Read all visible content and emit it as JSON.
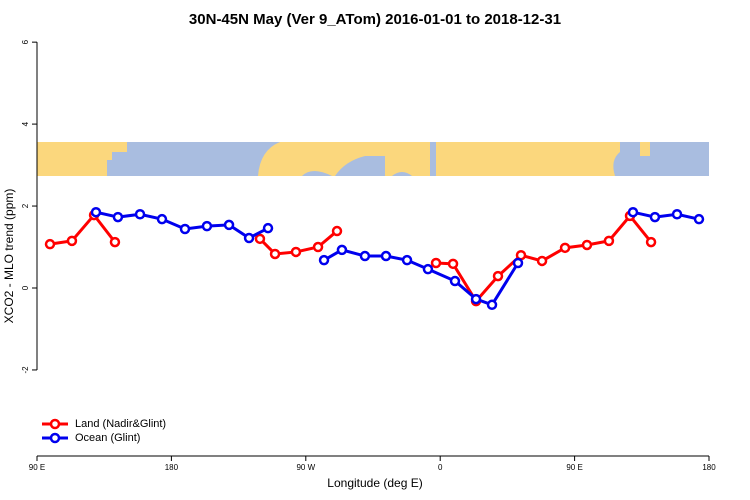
{
  "chart_data": {
    "type": "line",
    "title": "30N-45N May (Ver 9_ATom)   2016-01-01 to 2018-12-31",
    "x_label": "Longitude (deg E)",
    "y_label": "XCO2 - MLO trend (ppm)",
    "xlim": [
      90,
      540
    ],
    "ylim": [
      -4.1,
      6.15
    ],
    "xticks": [
      {
        "value": 90,
        "label": "90 E"
      },
      180,
      {
        "value": 270,
        "label": "90 W"
      },
      {
        "value": 360,
        "label": "0"
      },
      {
        "value": 450,
        "label": "90 E"
      },
      {
        "value": 540,
        "label": "180"
      }
    ],
    "yticks": [
      -2,
      0,
      2,
      4,
      6
    ],
    "legend": "bottom-left",
    "series": [
      {
        "name": "Land (Nadir&Glint)",
        "color": "#ff0000",
        "x": [
          98.7,
          113.4,
          128.2,
          142.2,
          null,
          239.3,
          249.4,
          263.4,
          278.2,
          290.9,
          null,
          357.2,
          368.6,
          384.0,
          398.7,
          414.1,
          428.2,
          443.6,
          458.3,
          473.0,
          487.1,
          501.2
        ],
        "values": [
          1.07,
          1.15,
          1.78,
          1.12,
          null,
          1.2,
          0.83,
          0.88,
          1.0,
          1.39,
          null,
          0.61,
          0.59,
          -0.32,
          0.29,
          0.8,
          0.66,
          0.98,
          1.05,
          1.15,
          1.76,
          1.12
        ]
      },
      {
        "name": "Ocean (Glint)",
        "color": "#0000ee",
        "x": [
          129.5,
          144.2,
          159.0,
          173.7,
          189.1,
          203.8,
          218.6,
          232.0,
          244.7,
          null,
          282.2,
          294.2,
          309.6,
          323.7,
          337.8,
          351.8,
          369.9,
          384.0,
          394.7,
          412.1,
          null,
          489.1,
          503.8,
          518.6,
          533.3
        ],
        "values": [
          1.85,
          1.73,
          1.8,
          1.68,
          1.44,
          1.51,
          1.54,
          1.22,
          1.46,
          null,
          0.68,
          0.93,
          0.78,
          0.78,
          0.68,
          0.46,
          0.17,
          -0.27,
          -0.41,
          0.61,
          null,
          1.85,
          1.73,
          1.8,
          1.68
        ]
      }
    ]
  }
}
